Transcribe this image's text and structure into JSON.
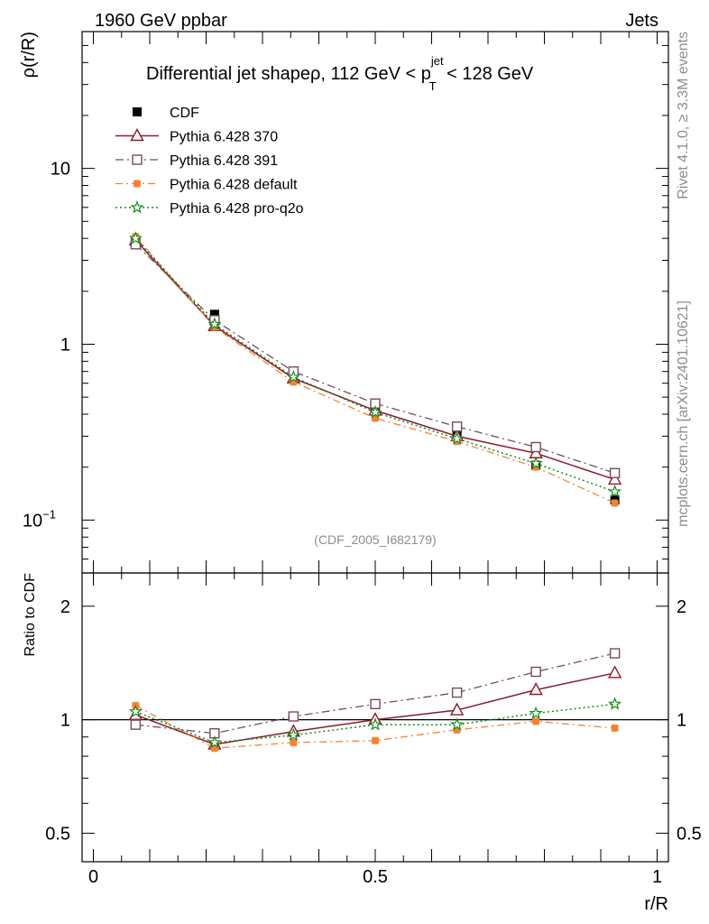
{
  "header": {
    "left": "1960 GeV ppbar",
    "right": "Jets"
  },
  "side_text": {
    "rivet": "Rivet 4.1.0, ≥ 3.3M events",
    "mcplots": "mcplots.cern.ch [arXiv:2401.10621]"
  },
  "colors": {
    "cdf": "#000000",
    "p370": "#8b1a2e",
    "p391": "#7a4a5e",
    "pdefault": "#f58231",
    "pq2o": "#128c1a"
  },
  "chart_data": [
    {
      "type": "line",
      "title_main": "Differential jet shapeρ, 112 GeV < p",
      "title_sup": "jet",
      "title_sub": "T",
      "title_end": " < 128 GeV",
      "ylabel": "ρ(r/R)",
      "yscale": "log",
      "ylim": [
        0.05,
        60
      ],
      "xlim": [
        -0.02,
        1.02
      ],
      "watermark": "(CDF_2005_I682179)",
      "y_ticks": [
        {
          "label_base": "10",
          "label_exp": "−1",
          "value": 0.1
        },
        {
          "label_base": "1",
          "label_exp": "",
          "value": 1
        },
        {
          "label_base": "10",
          "label_exp": "",
          "value": 10
        }
      ],
      "x": [
        0.075,
        0.215,
        0.355,
        0.5,
        0.645,
        0.785,
        0.925
      ],
      "series": [
        {
          "name": "CDF",
          "key": "cdf",
          "values": [
            3.8,
            1.48,
            0.69,
            0.42,
            0.3,
            0.205,
            0.13
          ]
        },
        {
          "name": "Pythia 6.428 370",
          "key": "p370",
          "values": [
            3.9,
            1.27,
            0.64,
            0.42,
            0.3,
            0.24,
            0.17
          ]
        },
        {
          "name": "Pythia 6.428 391",
          "key": "p391",
          "values": [
            3.7,
            1.37,
            0.7,
            0.46,
            0.34,
            0.26,
            0.185
          ]
        },
        {
          "name": "Pythia 6.428 default",
          "key": "pdefault",
          "values": [
            4.1,
            1.25,
            0.61,
            0.38,
            0.28,
            0.2,
            0.125
          ]
        },
        {
          "name": "Pythia 6.428 pro-q2o",
          "key": "pq2o",
          "values": [
            4.0,
            1.3,
            0.65,
            0.41,
            0.29,
            0.21,
            0.145
          ]
        }
      ]
    },
    {
      "type": "line",
      "ylabel": "Ratio to CDF",
      "xlabel": "r/R",
      "yscale": "log",
      "ylim": [
        0.42,
        2.45
      ],
      "xlim": [
        -0.02,
        1.02
      ],
      "y_ticks": [
        {
          "label": "0.5",
          "value": 0.5
        },
        {
          "label": "1",
          "value": 1
        },
        {
          "label": "2",
          "value": 2
        }
      ],
      "x_ticks": [
        {
          "label": "0",
          "value": 0
        },
        {
          "label": "0.5",
          "value": 0.5
        },
        {
          "label": "1",
          "value": 1
        }
      ],
      "x": [
        0.075,
        0.215,
        0.355,
        0.5,
        0.645,
        0.785,
        0.925
      ],
      "series": [
        {
          "name": "Pythia 6.428 370",
          "key": "p370",
          "values": [
            1.03,
            0.86,
            0.93,
            1.0,
            1.06,
            1.2,
            1.33
          ]
        },
        {
          "name": "Pythia 6.428 391",
          "key": "p391",
          "values": [
            0.97,
            0.92,
            1.02,
            1.1,
            1.18,
            1.34,
            1.5
          ]
        },
        {
          "name": "Pythia 6.428 default",
          "key": "pdefault",
          "values": [
            1.09,
            0.84,
            0.87,
            0.88,
            0.94,
            0.99,
            0.95
          ]
        },
        {
          "name": "Pythia 6.428 pro-q2o",
          "key": "pq2o",
          "values": [
            1.05,
            0.87,
            0.91,
            0.97,
            0.97,
            1.04,
            1.1
          ]
        }
      ]
    }
  ]
}
